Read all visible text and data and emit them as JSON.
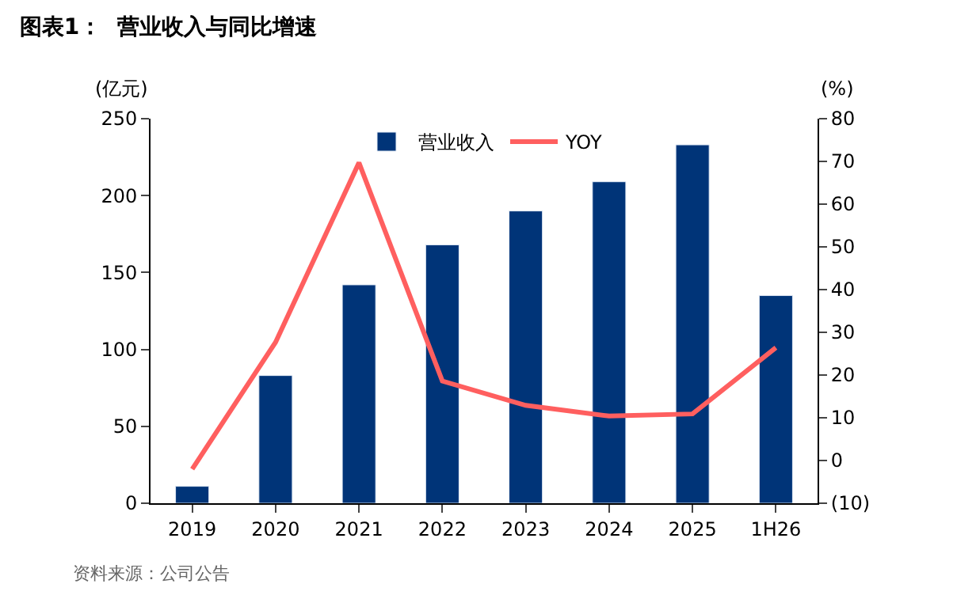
{
  "chart_data": {
    "type": "bar",
    "title": "图表1：  营业收入与同比增速",
    "ylabel": "(亿元)",
    "y2label": "(%)",
    "categories": [
      "2019",
      "2020",
      "2021",
      "2022",
      "2023",
      "2024",
      "2025",
      "1H26"
    ],
    "series": [
      {
        "name": "营业收入",
        "color": "#003478",
        "values": [
          11,
          83,
          142,
          168,
          190,
          209,
          233,
          135
        ]
      },
      {
        "name": "YOY",
        "type": "line",
        "axis": "y2",
        "color": "#ff5f5f",
        "marker": "none",
        "values": [
          -2,
          27.7,
          69.7,
          18.6,
          12.9,
          10.4,
          10.9,
          26.4
        ]
      }
    ],
    "ylim": [
      0,
      250
    ],
    "yticks": [
      0,
      50,
      100,
      150,
      200,
      250
    ],
    "y2lim": [
      -10,
      80
    ],
    "y2ticks": [
      {
        "value": -10,
        "label": "(10)"
      },
      0,
      10,
      20,
      30,
      40,
      50,
      60,
      70,
      80
    ],
    "legend": "top",
    "annotations": [
      "资料来源：公司公告"
    ]
  }
}
